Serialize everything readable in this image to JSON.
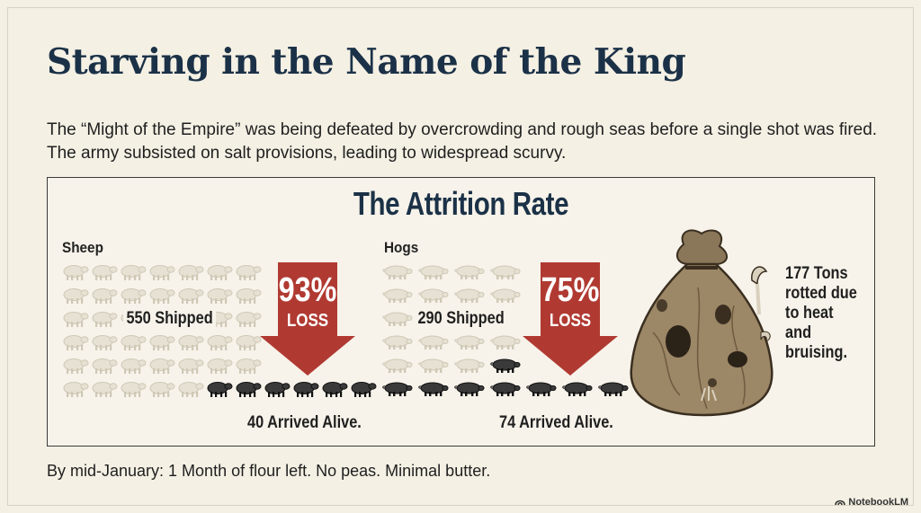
{
  "title": "Starving in the Name of the King",
  "subtitle": "The “Might of the Empire” was being defeated by overcrowding and rough seas before a single shot was fired. The army subsisted on salt provisions, leading to widespread scurvy.",
  "panel": {
    "heading": "The Attrition Rate",
    "sheep": {
      "label": "Sheep",
      "shipped_label": "550 Shipped",
      "arrived_label": "40 Arrived Alive.",
      "loss_percent": "93%",
      "loss_label": "LOSS",
      "icon": "sheep-icon"
    },
    "hogs": {
      "label": "Hogs",
      "shipped_label": "290 Shipped",
      "arrived_label": "74 Arrived Alive.",
      "loss_percent": "75%",
      "loss_label": "LOSS",
      "icon": "hog-icon"
    },
    "sack": {
      "text": "177 Tons rotted due to heat and bruising.",
      "icon": "rotting-sack-icon"
    }
  },
  "footer": "By mid-January: 1 Month of flour left. No peas. Minimal butter.",
  "brand": "NotebookLM",
  "colors": {
    "title": "#1b3147",
    "arrow": "#b03a32",
    "faded_animal": "#e6e1d3",
    "alive_animal": "#3a3a3a",
    "background": "#f4f0e4"
  }
}
